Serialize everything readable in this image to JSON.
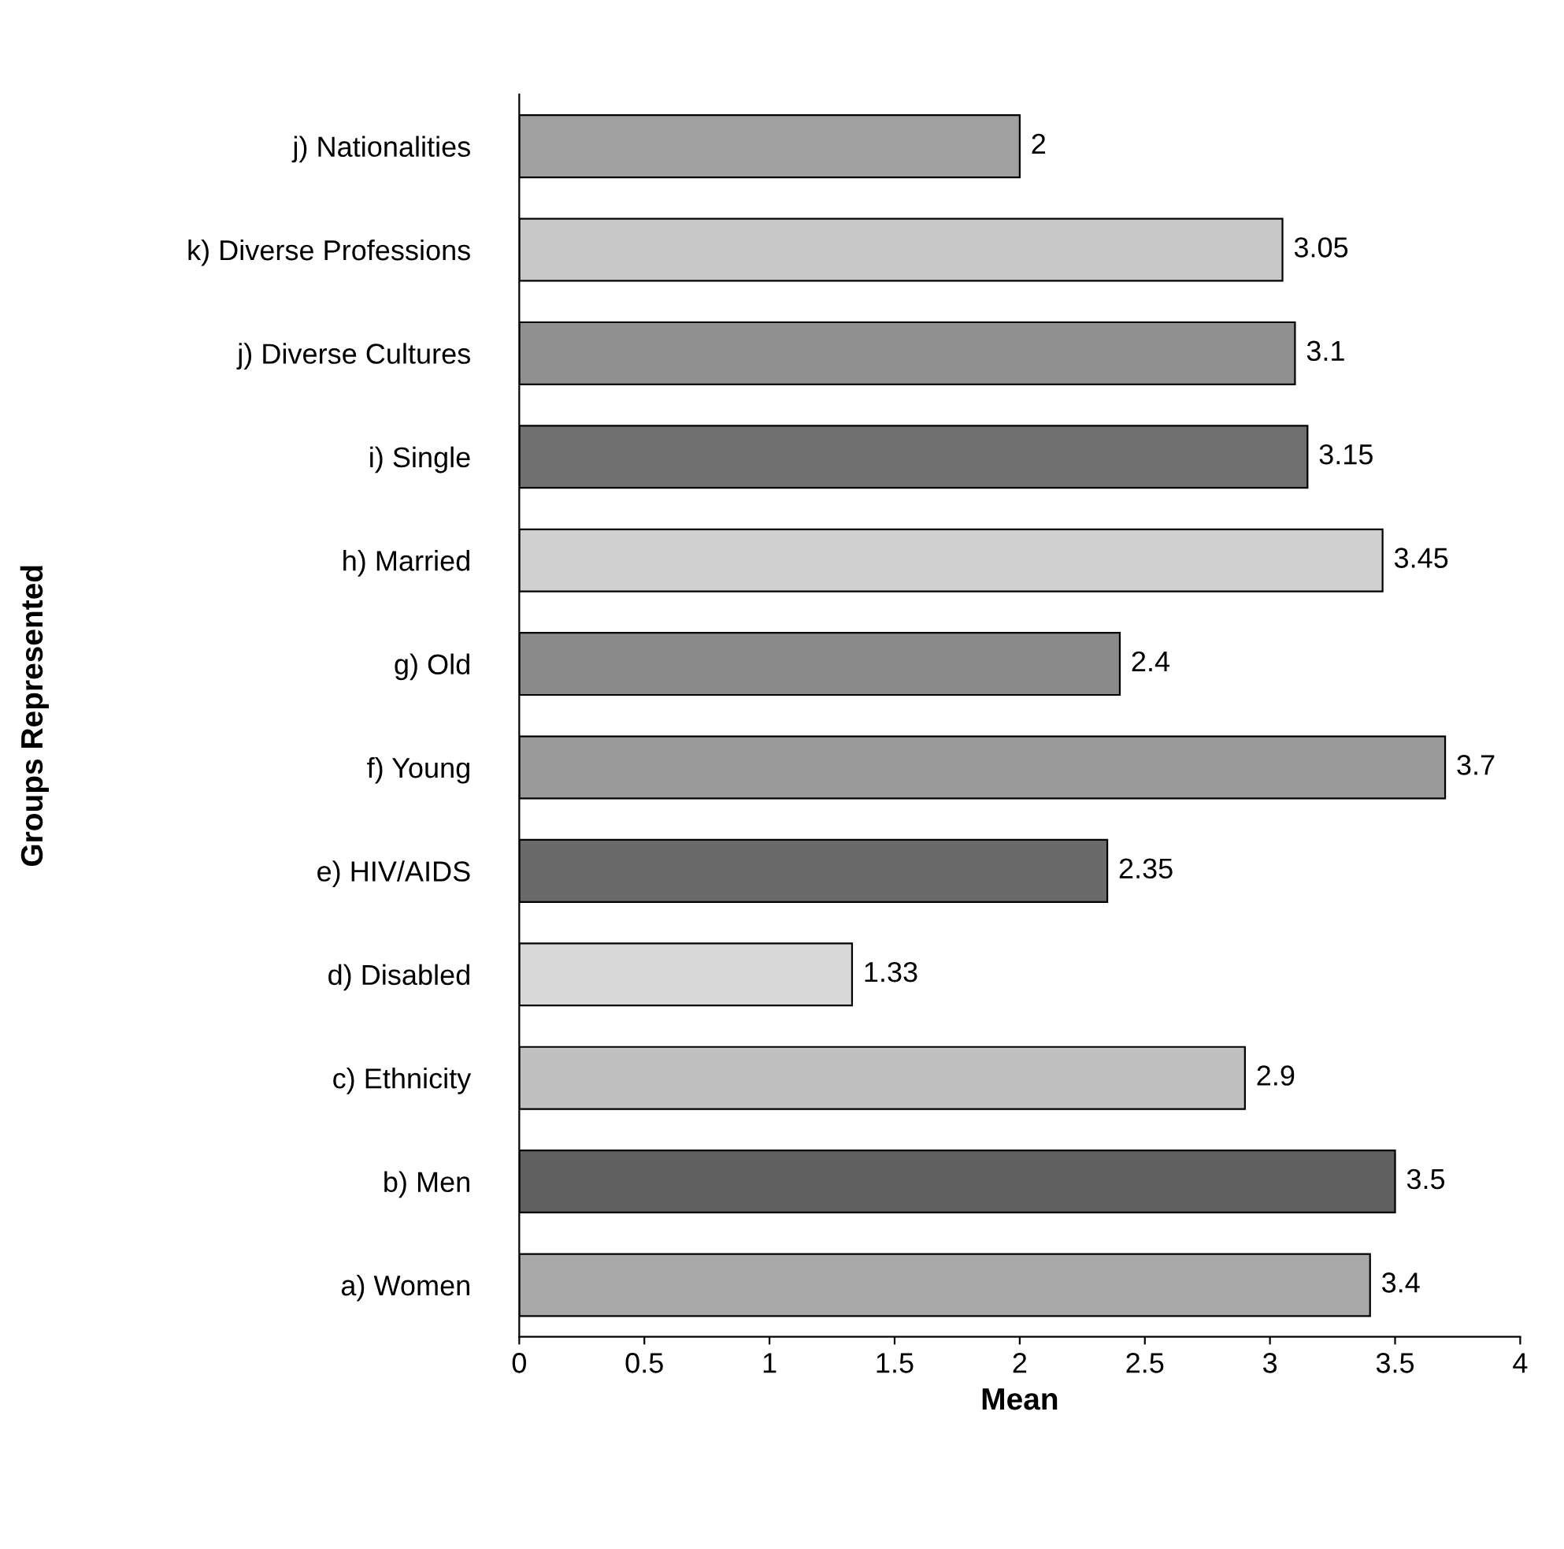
{
  "chart_data": {
    "type": "bar",
    "orientation": "horizontal",
    "xlabel": "Mean",
    "ylabel": "Groups Represented",
    "categories": [
      "j) Nationalities",
      "k) Diverse Professions",
      "j) Diverse Cultures",
      "i) Single",
      "h) Married",
      "g) Old",
      "f) Young",
      "e) HIV/AIDS",
      "d) Disabled",
      "c) Ethnicity",
      "b) Men",
      "a) Women"
    ],
    "values": [
      2,
      3.05,
      3.1,
      3.15,
      3.45,
      2.4,
      3.7,
      2.35,
      1.33,
      2.9,
      3.5,
      3.4
    ],
    "colors": [
      "#a0a0a0",
      "#c8c8c8",
      "#909090",
      "#707070",
      "#d0d0d0",
      "#8a8a8a",
      "#9a9a9a",
      "#6a6a6a",
      "#d8d8d8",
      "#c0c0c0",
      "#606060",
      "#a8a8a8"
    ],
    "xlim": [
      0,
      4
    ],
    "xticks": [
      0,
      0.5,
      1,
      1.5,
      2,
      2.5,
      3,
      3.5,
      4
    ],
    "data_labels": true
  }
}
